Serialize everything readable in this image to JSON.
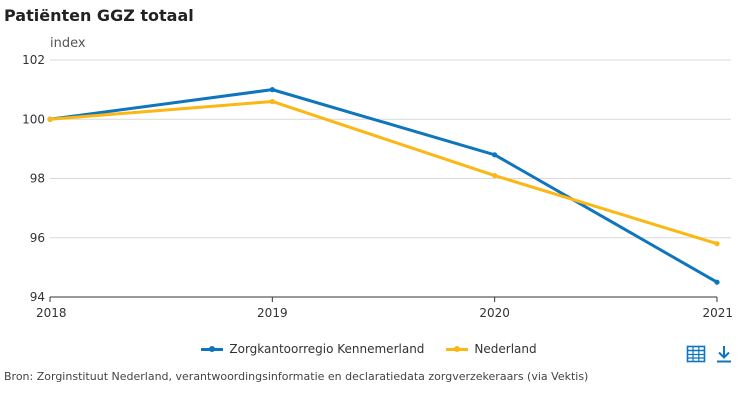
{
  "chart_data": {
    "type": "line",
    "title": "Patiënten GGZ totaal",
    "ylabel": "index",
    "xlabel": "",
    "x": [
      "2018",
      "2019",
      "2020",
      "2021"
    ],
    "ylim": [
      94,
      102
    ],
    "yticks": [
      94,
      96,
      98,
      100,
      102
    ],
    "grid": true,
    "legend_position": "bottom",
    "series": [
      {
        "name": "Zorgkantoorregio Kennemerland",
        "color": "#0f75bc",
        "values": [
          100.0,
          101.0,
          98.8,
          94.5
        ]
      },
      {
        "name": "Nederland",
        "color": "#fbb713",
        "values": [
          100.0,
          100.6,
          98.1,
          95.8
        ]
      }
    ]
  },
  "icons": {
    "table": "table-icon",
    "download": "download-icon"
  },
  "source": "Bron: Zorginstituut Nederland, verantwoordingsinformatie en declaratiedata zorgverzekeraars (via Vektis)"
}
